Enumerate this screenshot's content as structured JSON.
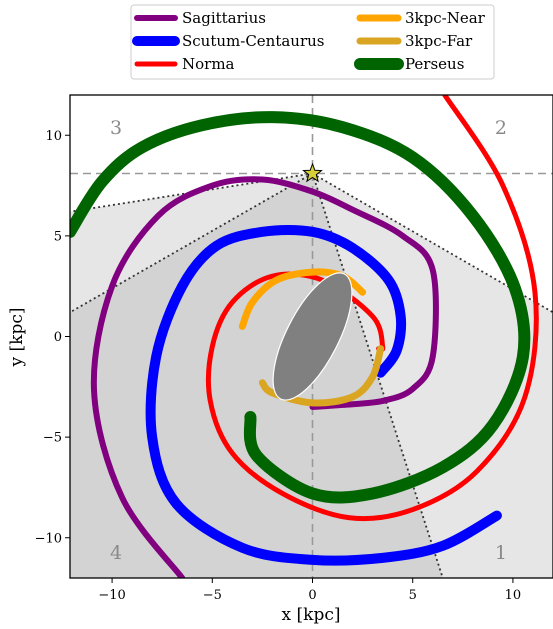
{
  "chart_data": {
    "type": "line",
    "xlabel": "x [kpc]",
    "ylabel": "y [kpc]",
    "xlim": [
      -12.1,
      12.0
    ],
    "ylim": [
      -12.0,
      12.0
    ],
    "x_ticks": [
      -10,
      -5,
      0,
      5,
      10
    ],
    "y_ticks": [
      -10,
      -5,
      0,
      5,
      10
    ],
    "x_tick_labels": [
      "−10",
      "−5",
      "0",
      "5",
      "10"
    ],
    "y_tick_labels": [
      "−10",
      "−5",
      "0",
      "5",
      "10"
    ],
    "legend_position": "top",
    "grid": false,
    "sun_position": [
      0,
      8.1
    ],
    "quadrant_labels": [
      {
        "text": "1",
        "x": 9.4,
        "y": -10.8
      },
      {
        "text": "2",
        "x": 9.4,
        "y": 10.3
      },
      {
        "text": "3",
        "x": -9.8,
        "y": 10.3
      },
      {
        "text": "4",
        "x": -9.8,
        "y": -10.8
      }
    ],
    "bar": {
      "center": [
        0,
        0
      ],
      "semi_major": 3.5,
      "semi_minor": 1.3,
      "angle_deg": 27,
      "color": "#808080"
    },
    "series": [
      {
        "name": "Sagittarius",
        "color": "#800080",
        "width": 6,
        "points": [
          [
            -6.5,
            -12
          ],
          [
            -9.5,
            -8
          ],
          [
            -10.9,
            -2.7
          ],
          [
            -10,
            2.5
          ],
          [
            -7.7,
            6
          ],
          [
            -5,
            7.5
          ],
          [
            -2.5,
            7.8
          ],
          [
            0,
            7.2
          ],
          [
            2,
            6.3
          ],
          [
            4.5,
            5
          ],
          [
            6,
            3.3
          ],
          [
            6,
            -1
          ],
          [
            5,
            -2.6
          ],
          [
            3.5,
            -3.2
          ],
          [
            1.5,
            -3.4
          ],
          [
            0,
            -3.5
          ]
        ]
      },
      {
        "name": "Scutum-Centaurus",
        "color": "#0000ff",
        "width": 10,
        "points": [
          [
            9.2,
            -8.9
          ],
          [
            6.5,
            -10.4
          ],
          [
            3.5,
            -11
          ],
          [
            0,
            -11.1
          ],
          [
            -3.5,
            -10.5
          ],
          [
            -6.8,
            -8.3
          ],
          [
            -8,
            -5
          ],
          [
            -7.8,
            -1
          ],
          [
            -6.5,
            2.5
          ],
          [
            -4.8,
            4.5
          ],
          [
            -2.5,
            5.2
          ],
          [
            0,
            5.2
          ],
          [
            2,
            4.4
          ],
          [
            3.8,
            2.8
          ],
          [
            4.4,
            1
          ],
          [
            4.2,
            -0.7
          ],
          [
            3.4,
            -1.8
          ]
        ]
      },
      {
        "name": "Norma",
        "color": "#ff0000",
        "width": 5,
        "points": [
          [
            6.6,
            12
          ],
          [
            9.5,
            7.5
          ],
          [
            11.1,
            2.2
          ],
          [
            10.6,
            -3
          ],
          [
            8.2,
            -6.7
          ],
          [
            5,
            -8.6
          ],
          [
            1.8,
            -9
          ],
          [
            -1.5,
            -7.8
          ],
          [
            -4,
            -5.8
          ],
          [
            -5.1,
            -3.2
          ],
          [
            -5,
            -0.5
          ],
          [
            -4,
            1.7
          ],
          [
            -2,
            3
          ],
          [
            0.5,
            2.8
          ],
          [
            3,
            1
          ],
          [
            3.5,
            -0.5
          ],
          [
            3.3,
            -0.6
          ]
        ]
      },
      {
        "name": "3kpc-Near",
        "color": "#ffa500",
        "width": 7,
        "points": [
          [
            -3.5,
            0.5
          ],
          [
            -3,
            1.7
          ],
          [
            -1.8,
            2.8
          ],
          [
            0,
            3.2
          ],
          [
            1.5,
            3
          ],
          [
            2.5,
            2.2
          ]
        ]
      },
      {
        "name": "3kpc-Far",
        "color": "#daa520",
        "width": 7,
        "points": [
          [
            3.4,
            -0.6
          ],
          [
            3,
            -2
          ],
          [
            2,
            -3
          ],
          [
            0,
            -3.3
          ],
          [
            -2,
            -2.8
          ],
          [
            -2.5,
            -2.3
          ]
        ]
      },
      {
        "name": "Perseus",
        "color": "#006400",
        "width": 12,
        "points": [
          [
            -12.1,
            5.2
          ],
          [
            -10.5,
            7.7
          ],
          [
            -8.5,
            9.4
          ],
          [
            -5.5,
            10.5
          ],
          [
            -2,
            10.9
          ],
          [
            1.5,
            10.4
          ],
          [
            5,
            8.9
          ],
          [
            8,
            6
          ],
          [
            10.1,
            2.4
          ],
          [
            10.5,
            -1
          ],
          [
            9,
            -4.4
          ],
          [
            6.5,
            -6.5
          ],
          [
            3,
            -7.8
          ],
          [
            0,
            -7.8
          ],
          [
            -2.8,
            -5.9
          ],
          [
            -3.1,
            -4
          ]
        ]
      }
    ]
  }
}
